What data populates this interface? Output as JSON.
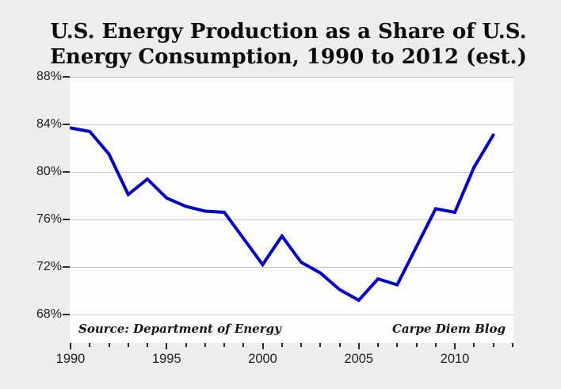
{
  "page": {
    "background_color": "#eeedeb",
    "plot_background_color": "#fdfdfd"
  },
  "chart_data": {
    "type": "line",
    "title": "U.S. Energy Production as a Share of U.S. Energy Consumption, 1990 to 2012 (est.)",
    "title_line1": "U.S. Energy Production as a Share of U.S.",
    "title_line2": "Energy Consumption, 1990 to 2012 (est.)",
    "xlabel": "",
    "ylabel": "",
    "x": [
      1990,
      1991,
      1992,
      1993,
      1994,
      1995,
      1996,
      1997,
      1998,
      1999,
      2000,
      2001,
      2002,
      2003,
      2004,
      2005,
      2006,
      2007,
      2008,
      2009,
      2010,
      2011,
      2012
    ],
    "series": [
      {
        "name": "U.S. energy production as share of U.S. energy consumption (%)",
        "color": "#0202cc",
        "values": [
          83.7,
          83.4,
          81.5,
          78.1,
          79.4,
          77.8,
          77.1,
          76.7,
          76.6,
          74.4,
          72.2,
          74.6,
          72.4,
          71.5,
          70.1,
          69.2,
          71.0,
          70.5,
          73.7,
          76.9,
          76.6,
          80.4,
          83.1
        ]
      }
    ],
    "ylim": [
      65.6,
      88
    ],
    "xlim": [
      1990,
      2013.1
    ],
    "grid": true,
    "legend_position": "none",
    "y_ticks": [
      {
        "value": 88,
        "label": "88%"
      },
      {
        "value": 84,
        "label": "84%"
      },
      {
        "value": 80,
        "label": "80%"
      },
      {
        "value": 76,
        "label": "76%"
      },
      {
        "value": 72,
        "label": "72%"
      },
      {
        "value": 68,
        "label": "68%"
      }
    ],
    "x_minor_tick_years": [
      1990,
      1991,
      1992,
      1993,
      1994,
      1995,
      1996,
      1997,
      1998,
      1999,
      2000,
      2001,
      2002,
      2003,
      2004,
      2005,
      2006,
      2007,
      2008,
      2009,
      2010,
      2011,
      2012,
      2013
    ],
    "x_major_ticks": [
      {
        "year": 1990,
        "label": "1990"
      },
      {
        "year": 1995,
        "label": "1995"
      },
      {
        "year": 2000,
        "label": "2000"
      },
      {
        "year": 2005,
        "label": "2005"
      },
      {
        "year": 2010,
        "label": "2010"
      }
    ],
    "annotations": {
      "source_note": "Source: Department of Energy",
      "credit": "Carpe Diem Blog"
    },
    "colors": {
      "line": "#0202cc",
      "grid": "#c8c8c8",
      "tick": "#2a2a2a",
      "text": "#1f1f1f",
      "title": "#0a0a0a"
    }
  }
}
